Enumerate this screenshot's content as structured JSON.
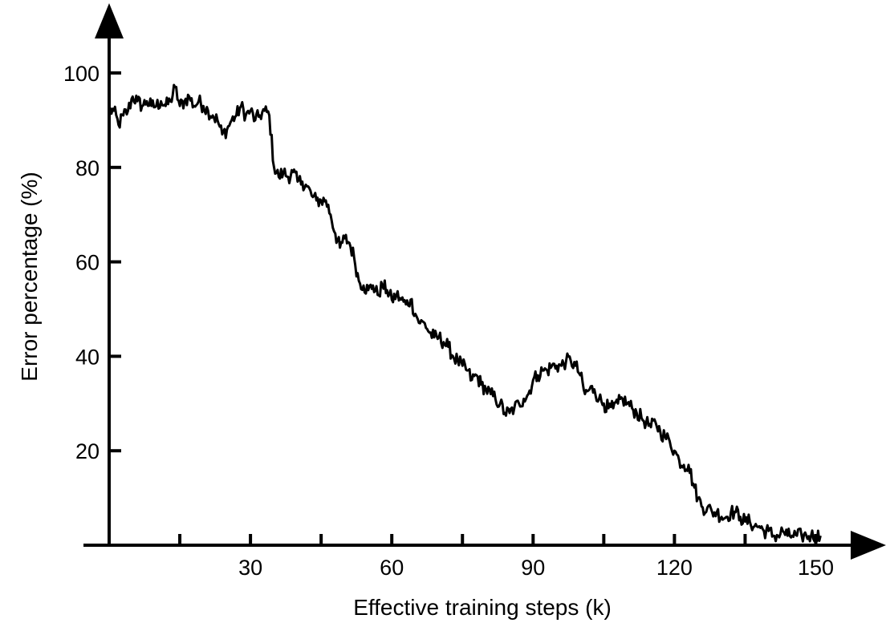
{
  "chart_data": {
    "type": "line",
    "title": "",
    "xlabel": "Effective training steps (k)",
    "ylabel": "Error percentage (%)",
    "xlim": [
      0,
      155
    ],
    "ylim": [
      0,
      100
    ],
    "x_ticks": [
      15,
      30,
      45,
      60,
      75,
      90,
      105,
      120,
      135,
      150
    ],
    "x_tick_labels": [
      "",
      "30",
      "",
      "60",
      "",
      "90",
      "",
      "120",
      "",
      "150"
    ],
    "y_ticks": [
      20,
      40,
      60,
      80,
      100
    ],
    "y_tick_labels": [
      "20",
      "40",
      "60",
      "80",
      "100"
    ],
    "grid": false,
    "legend": "none",
    "line_color": "#000000",
    "series": [
      {
        "x": [
          0,
          1,
          2,
          3,
          4,
          5,
          6,
          7,
          8,
          9,
          10,
          11,
          12,
          13,
          14,
          15,
          16,
          17,
          18,
          19,
          20,
          21,
          22,
          23,
          24,
          25,
          26,
          27,
          28,
          29,
          30,
          31,
          32,
          33,
          34,
          35,
          36,
          37,
          38,
          39,
          40,
          41,
          42,
          43,
          44,
          45,
          46,
          47,
          48,
          49,
          50,
          51,
          52,
          53,
          54,
          55,
          56,
          57,
          58,
          59,
          60,
          61,
          62,
          63,
          64,
          65,
          66,
          67,
          68,
          69,
          70,
          71,
          72,
          73,
          74,
          75,
          76,
          77,
          78,
          79,
          80,
          81,
          82,
          83,
          84,
          85,
          86,
          87,
          88,
          89,
          90,
          91,
          92,
          93,
          94,
          95,
          96,
          97,
          98,
          99,
          100,
          101,
          102,
          103,
          104,
          105,
          106,
          107,
          108,
          109,
          110,
          111,
          112,
          113,
          114,
          115,
          116,
          117,
          118,
          119,
          120,
          121,
          122,
          123,
          124,
          125,
          126,
          127,
          128,
          129,
          130,
          131,
          132,
          133,
          134,
          135,
          136,
          137,
          138,
          139,
          140,
          141,
          142,
          143,
          144,
          145,
          146,
          147,
          148,
          149,
          150,
          151
        ],
        "values": [
          92,
          92,
          89,
          91,
          92,
          95,
          94,
          93,
          94,
          93,
          93,
          94,
          93,
          94,
          97,
          93,
          94,
          95,
          93,
          94,
          93,
          92,
          91,
          90,
          87,
          88,
          90,
          91,
          93,
          91,
          92,
          90,
          91,
          92,
          91,
          80,
          78,
          79,
          78,
          79,
          77,
          77,
          76,
          74,
          73,
          73,
          73,
          70,
          66,
          63,
          65,
          64,
          61,
          56,
          55,
          54,
          55,
          53,
          55,
          54,
          52,
          53,
          52,
          51,
          52,
          49,
          47,
          47,
          45,
          44,
          44,
          43,
          42,
          40,
          39,
          38,
          37,
          35,
          36,
          34,
          33,
          32,
          31,
          30,
          28,
          28,
          29,
          30,
          31,
          32,
          35,
          36,
          37,
          37,
          38,
          38,
          38,
          39,
          39,
          38,
          36,
          32,
          33,
          33,
          31,
          30,
          29,
          29,
          30,
          31,
          30,
          29,
          28,
          27,
          26,
          25,
          26,
          24,
          23,
          22,
          20,
          18,
          17,
          17,
          13,
          10,
          8,
          8,
          7,
          7,
          6,
          6,
          7,
          7,
          6,
          5,
          5,
          4,
          4,
          3,
          3,
          2,
          2,
          3,
          2,
          2,
          2,
          2,
          2,
          2,
          2,
          2
        ]
      }
    ]
  }
}
